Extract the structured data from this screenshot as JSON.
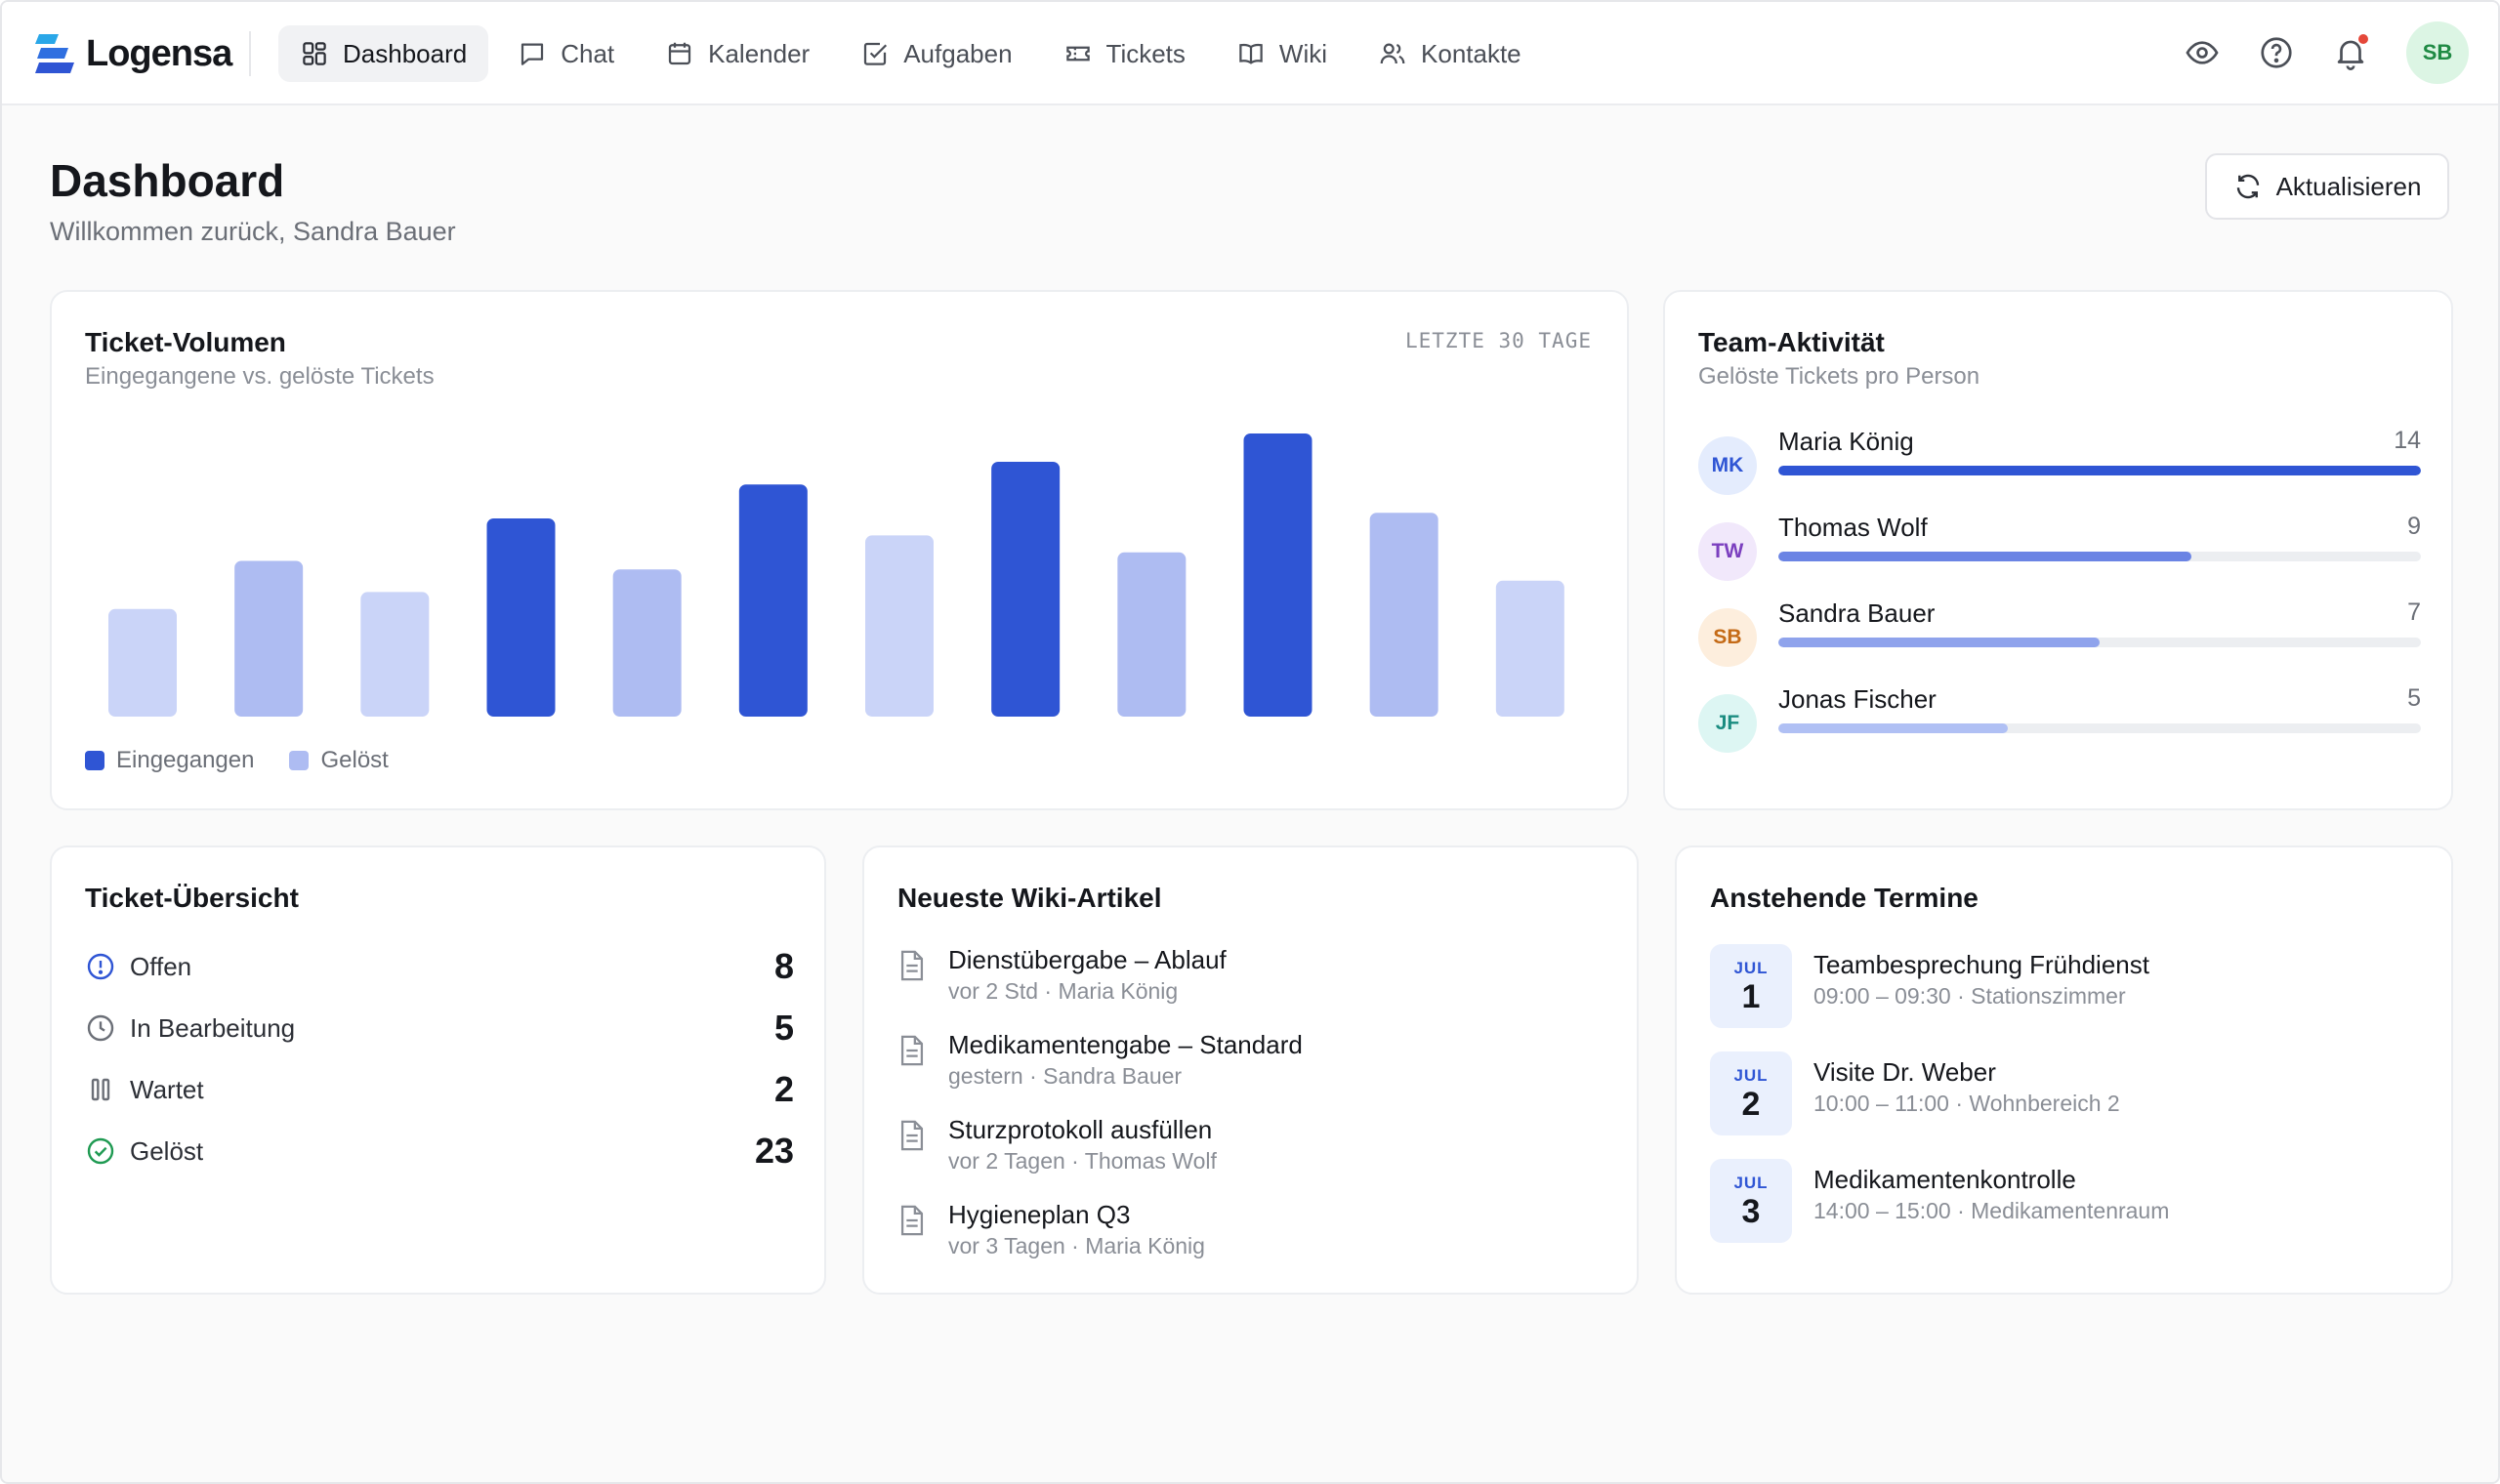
{
  "app": {
    "name": "Logensa"
  },
  "colors": {
    "accent": "#2f55d4",
    "bar_received": "#2f55d4",
    "bar_resolved": "#aebcf2",
    "bar_light": "#cad4f8"
  },
  "nav": {
    "items": [
      {
        "label": "Dashboard",
        "icon": "grid-icon",
        "active": true
      },
      {
        "label": "Chat",
        "icon": "chat-icon"
      },
      {
        "label": "Kalender",
        "icon": "calendar-icon"
      },
      {
        "label": "Aufgaben",
        "icon": "checkbox-icon"
      },
      {
        "label": "Tickets",
        "icon": "ticket-icon"
      },
      {
        "label": "Wiki",
        "icon": "book-icon"
      },
      {
        "label": "Kontakte",
        "icon": "users-icon"
      }
    ]
  },
  "topbar": {
    "user_initials": "SB",
    "icons": [
      "eye-icon",
      "help-icon",
      "bell-icon"
    ]
  },
  "header": {
    "title": "Dashboard",
    "subtitle": "Willkommen zurück, Sandra Bauer",
    "refresh_label": "Aktualisieren"
  },
  "ticket_volume": {
    "title": "Ticket-Volumen",
    "subtitle": "Eingegangene vs. gelöste Tickets",
    "range": "LETZTE 30 TAGE",
    "legend": {
      "received": "Eingegangen",
      "resolved": "Gelöst"
    }
  },
  "chart_data": {
    "type": "bar",
    "title": "Ticket-Volumen",
    "subtitle": "Eingegangene vs. gelöste Tickets",
    "legend": [
      "Eingegangen",
      "Gelöst"
    ],
    "legend_position": "bottom-left",
    "grid": false,
    "values": [
      38,
      55,
      44,
      70,
      52,
      82,
      64,
      90,
      58,
      100,
      72,
      48
    ],
    "tones": [
      "light",
      "mid",
      "light",
      "dark",
      "mid",
      "dark",
      "light",
      "dark",
      "mid",
      "dark",
      "mid",
      "light"
    ],
    "ylim": [
      0,
      100
    ]
  },
  "team_activity": {
    "title": "Team-Aktivität",
    "subtitle": "Gelöste Tickets pro Person",
    "max": 14,
    "members": [
      {
        "initials": "MK",
        "name": "Maria König",
        "count": 14,
        "avatar_bg": "#e4ecfd",
        "avatar_fg": "#2f55d4",
        "bar": "#2f55d4"
      },
      {
        "initials": "TW",
        "name": "Thomas Wolf",
        "count": 9,
        "avatar_bg": "#f1e8fb",
        "avatar_fg": "#7b3fbf",
        "bar": "#6b84e4"
      },
      {
        "initials": "SB",
        "name": "Sandra Bauer",
        "count": 7,
        "avatar_bg": "#fdeedd",
        "avatar_fg": "#c46a16",
        "bar": "#8fa3ec"
      },
      {
        "initials": "JF",
        "name": "Jonas Fischer",
        "count": 5,
        "avatar_bg": "#ddf6f3",
        "avatar_fg": "#1a8c80",
        "bar": "#b0c0f4"
      }
    ]
  },
  "ticket_overview": {
    "title": "Ticket-Übersicht",
    "rows": [
      {
        "label": "Offen",
        "value": 8,
        "icon": "alert-circle-icon"
      },
      {
        "label": "In Bearbeitung",
        "value": 5,
        "icon": "clock-icon"
      },
      {
        "label": "Wartet",
        "value": 2,
        "icon": "pause-icon"
      },
      {
        "label": "Gelöst",
        "value": 23,
        "icon": "check-circle-icon"
      }
    ]
  },
  "wiki": {
    "title": "Neueste Wiki-Artikel",
    "articles": [
      {
        "title": "Dienstübergabe – Ablauf",
        "meta": "vor 2 Std · Maria König"
      },
      {
        "title": "Medikamentengabe – Standard",
        "meta": "gestern · Sandra Bauer"
      },
      {
        "title": "Sturzprotokoll ausfüllen",
        "meta": "vor 2 Tagen · Thomas Wolf"
      },
      {
        "title": "Hygieneplan Q3",
        "meta": "vor 3 Tagen · Maria König"
      }
    ]
  },
  "events": {
    "title": "Anstehende Termine",
    "items": [
      {
        "month": "JUL",
        "day": "1",
        "title": "Teambesprechung Frühdienst",
        "meta": "09:00 – 09:30 · Stationszimmer"
      },
      {
        "month": "JUL",
        "day": "2",
        "title": "Visite Dr. Weber",
        "meta": "10:00 – 11:00 · Wohnbereich 2"
      },
      {
        "month": "JUL",
        "day": "3",
        "title": "Medikamentenkontrolle",
        "meta": "14:00 – 15:00 · Medikamentenraum"
      }
    ]
  }
}
